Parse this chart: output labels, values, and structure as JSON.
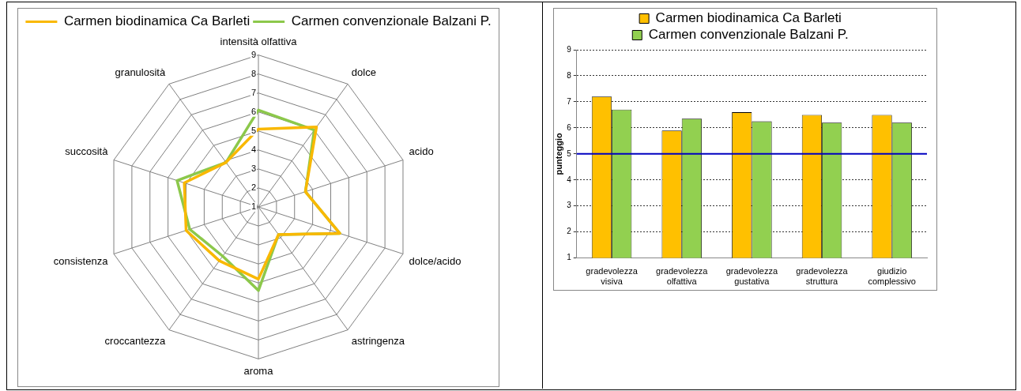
{
  "chart_data": [
    {
      "type": "radar",
      "categories": [
        "intensità olfattiva",
        "dolce",
        "acido",
        "dolce/acido",
        "astringenza",
        "aroma",
        "croccantezza",
        "consistenza",
        "succosità",
        "granulosità"
      ],
      "series": [
        {
          "name": "Carmen biodinamica Ca Barleti",
          "color": "#f9b800",
          "values": [
            5.1,
            6.2,
            3.6,
            5.5,
            2.8,
            4.8,
            4.5,
            5.0,
            5.1,
            3.9
          ]
        },
        {
          "name": "Carmen convenzionale Balzani P.",
          "color": "#8cc84b",
          "values": [
            6.1,
            6.0,
            3.6,
            5.5,
            2.8,
            5.4,
            4.2,
            4.8,
            5.5,
            3.9
          ]
        }
      ],
      "ylim": [
        1,
        9
      ],
      "yticks": [
        1,
        2,
        3,
        4,
        5,
        6,
        7,
        8,
        9
      ],
      "grid": true,
      "legend": "top",
      "marker": "none",
      "line_style": "solid"
    },
    {
      "type": "bar",
      "categories": [
        "gradevolezza visiva",
        "gradevolezza olfattiva",
        "gradevolezza gustativa",
        "gradevolezza struttura",
        "giudizio complessivo"
      ],
      "series": [
        {
          "name": "Carmen biodinamica Ca Barleti",
          "color": "#ffc000",
          "values": [
            7.2,
            5.9,
            6.6,
            6.5,
            6.5
          ]
        },
        {
          "name": "Carmen convenzionale Balzani P.",
          "color": "#92d050",
          "values": [
            6.7,
            6.35,
            6.25,
            6.2,
            6.2
          ]
        }
      ],
      "ylabel": "punteggio",
      "ylim": [
        1,
        9
      ],
      "yticks": [
        1,
        2,
        3,
        4,
        5,
        6,
        7,
        8,
        9
      ],
      "grid": "y",
      "legend": "top",
      "ref_lines": [
        {
          "axis": "y",
          "value": 5,
          "color": "#0000c0"
        }
      ]
    }
  ]
}
